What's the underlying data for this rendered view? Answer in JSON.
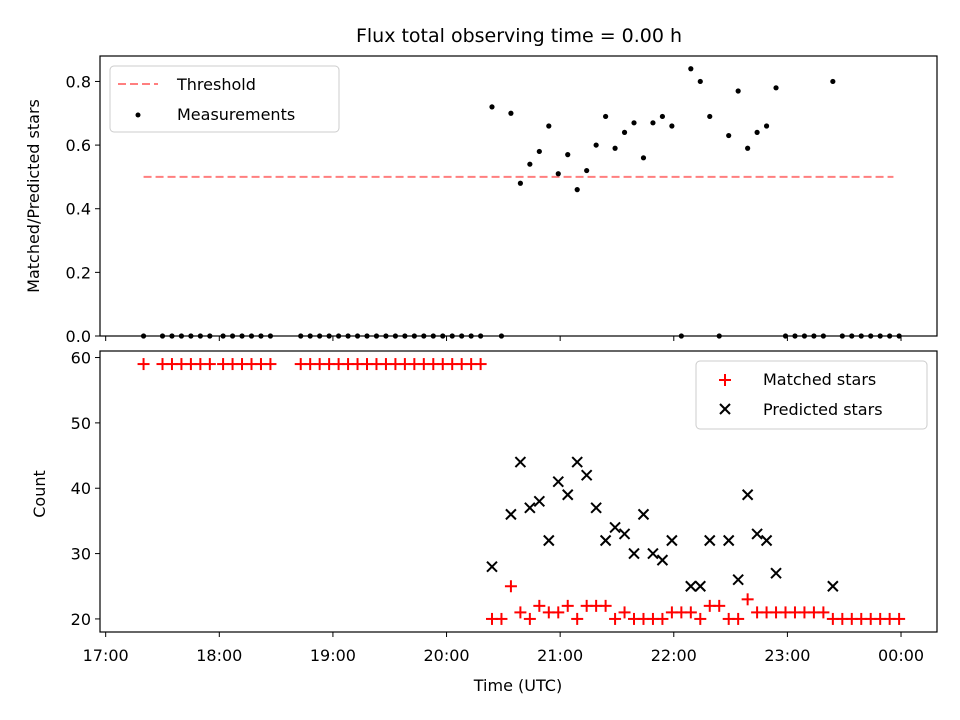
{
  "chart_data": [
    {
      "type": "scatter",
      "title": "Flux total observing time = 0.00 h",
      "xlabel": "",
      "ylabel": "Matched/Predicted stars",
      "ylim": [
        0,
        0.88
      ],
      "xlim": [
        "16:57",
        "00:19"
      ],
      "x_ticks": [
        "17:00",
        "18:00",
        "19:00",
        "20:00",
        "21:00",
        "22:00",
        "23:00",
        "00:00"
      ],
      "x_tick_labels_visible": false,
      "y_ticks": [
        "0.0",
        "0.2",
        "0.4",
        "0.6",
        "0.8"
      ],
      "legend": {
        "placement": "top-left",
        "entries": [
          "Threshold",
          "Measurements"
        ]
      },
      "grid": false,
      "threshold": {
        "name": "Threshold",
        "value": 0.5,
        "x_range": [
          "17:20",
          "23:56"
        ],
        "style": "dashed",
        "color": "#ff7f7f"
      },
      "series": [
        {
          "name": "Measurements",
          "color": "#000000",
          "marker": "dot",
          "points": [
            [
              "17:20",
              0
            ],
            [
              "17:30",
              0
            ],
            [
              "17:35",
              0
            ],
            [
              "17:40",
              0
            ],
            [
              "17:45",
              0
            ],
            [
              "17:50",
              0
            ],
            [
              "17:55",
              0
            ],
            [
              "18:02",
              0
            ],
            [
              "18:07",
              0
            ],
            [
              "18:12",
              0
            ],
            [
              "18:17",
              0
            ],
            [
              "18:22",
              0
            ],
            [
              "18:27",
              0
            ],
            [
              "18:43",
              0
            ],
            [
              "18:48",
              0
            ],
            [
              "18:53",
              0
            ],
            [
              "18:58",
              0
            ],
            [
              "19:03",
              0
            ],
            [
              "19:08",
              0
            ],
            [
              "19:13",
              0
            ],
            [
              "19:18",
              0
            ],
            [
              "19:23",
              0
            ],
            [
              "19:28",
              0
            ],
            [
              "19:33",
              0
            ],
            [
              "19:38",
              0
            ],
            [
              "19:43",
              0
            ],
            [
              "19:48",
              0
            ],
            [
              "19:53",
              0
            ],
            [
              "19:58",
              0
            ],
            [
              "20:03",
              0
            ],
            [
              "20:08",
              0
            ],
            [
              "20:13",
              0
            ],
            [
              "20:18",
              0
            ],
            [
              "20:24",
              0.72
            ],
            [
              "20:29",
              0
            ],
            [
              "20:34",
              0.7
            ],
            [
              "20:39",
              0.48
            ],
            [
              "20:44",
              0.54
            ],
            [
              "20:49",
              0.58
            ],
            [
              "20:54",
              0.66
            ],
            [
              "20:59",
              0.51
            ],
            [
              "21:04",
              0.57
            ],
            [
              "21:09",
              0.46
            ],
            [
              "21:14",
              0.52
            ],
            [
              "21:19",
              0.6
            ],
            [
              "21:24",
              0.69
            ],
            [
              "21:29",
              0.59
            ],
            [
              "21:34",
              0.64
            ],
            [
              "21:39",
              0.67
            ],
            [
              "21:44",
              0.56
            ],
            [
              "21:49",
              0.67
            ],
            [
              "21:54",
              0.69
            ],
            [
              "21:59",
              0.66
            ],
            [
              "22:04",
              0
            ],
            [
              "22:09",
              0.84
            ],
            [
              "22:14",
              0.8
            ],
            [
              "22:19",
              0.69
            ],
            [
              "22:24",
              0
            ],
            [
              "22:29",
              0.63
            ],
            [
              "22:34",
              0.77
            ],
            [
              "22:39",
              0.59
            ],
            [
              "22:44",
              0.64
            ],
            [
              "22:49",
              0.66
            ],
            [
              "22:54",
              0.78
            ],
            [
              "22:59",
              0
            ],
            [
              "23:04",
              0
            ],
            [
              "23:09",
              0
            ],
            [
              "23:14",
              0
            ],
            [
              "23:19",
              0
            ],
            [
              "23:24",
              0.8
            ],
            [
              "23:29",
              0
            ],
            [
              "23:34",
              0
            ],
            [
              "23:39",
              0
            ],
            [
              "23:44",
              0
            ],
            [
              "23:49",
              0
            ],
            [
              "23:54",
              0
            ],
            [
              "23:59",
              0
            ]
          ]
        }
      ]
    },
    {
      "type": "scatter",
      "title": "",
      "xlabel": "Time (UTC)",
      "ylabel": "Count",
      "ylim": [
        18,
        61
      ],
      "xlim": [
        "16:57",
        "00:19"
      ],
      "x_ticks": [
        "17:00",
        "18:00",
        "19:00",
        "20:00",
        "21:00",
        "22:00",
        "23:00",
        "00:00"
      ],
      "y_ticks": [
        "20",
        "30",
        "40",
        "50",
        "60"
      ],
      "legend": {
        "placement": "top-right",
        "entries": [
          "Matched stars",
          "Predicted stars"
        ]
      },
      "grid": false,
      "series": [
        {
          "name": "Matched stars",
          "color": "#ff0000",
          "marker": "plus",
          "points": [
            [
              "17:20",
              59
            ],
            [
              "17:30",
              59
            ],
            [
              "17:35",
              59
            ],
            [
              "17:40",
              59
            ],
            [
              "17:45",
              59
            ],
            [
              "17:50",
              59
            ],
            [
              "17:55",
              59
            ],
            [
              "18:02",
              59
            ],
            [
              "18:07",
              59
            ],
            [
              "18:12",
              59
            ],
            [
              "18:17",
              59
            ],
            [
              "18:22",
              59
            ],
            [
              "18:27",
              59
            ],
            [
              "18:43",
              59
            ],
            [
              "18:48",
              59
            ],
            [
              "18:53",
              59
            ],
            [
              "18:58",
              59
            ],
            [
              "19:03",
              59
            ],
            [
              "19:08",
              59
            ],
            [
              "19:13",
              59
            ],
            [
              "19:18",
              59
            ],
            [
              "19:23",
              59
            ],
            [
              "19:28",
              59
            ],
            [
              "19:33",
              59
            ],
            [
              "19:38",
              59
            ],
            [
              "19:43",
              59
            ],
            [
              "19:48",
              59
            ],
            [
              "19:53",
              59
            ],
            [
              "19:58",
              59
            ],
            [
              "20:03",
              59
            ],
            [
              "20:08",
              59
            ],
            [
              "20:13",
              59
            ],
            [
              "20:18",
              59
            ],
            [
              "20:24",
              20
            ],
            [
              "20:29",
              20
            ],
            [
              "20:34",
              25
            ],
            [
              "20:39",
              21
            ],
            [
              "20:44",
              20
            ],
            [
              "20:49",
              22
            ],
            [
              "20:54",
              21
            ],
            [
              "20:59",
              21
            ],
            [
              "21:04",
              22
            ],
            [
              "21:09",
              20
            ],
            [
              "21:14",
              22
            ],
            [
              "21:19",
              22
            ],
            [
              "21:24",
              22
            ],
            [
              "21:29",
              20
            ],
            [
              "21:34",
              21
            ],
            [
              "21:39",
              20
            ],
            [
              "21:44",
              20
            ],
            [
              "21:49",
              20
            ],
            [
              "21:54",
              20
            ],
            [
              "21:59",
              21
            ],
            [
              "22:04",
              21
            ],
            [
              "22:09",
              21
            ],
            [
              "22:14",
              20
            ],
            [
              "22:19",
              22
            ],
            [
              "22:24",
              22
            ],
            [
              "22:29",
              20
            ],
            [
              "22:34",
              20
            ],
            [
              "22:39",
              23
            ],
            [
              "22:44",
              21
            ],
            [
              "22:49",
              21
            ],
            [
              "22:54",
              21
            ],
            [
              "22:59",
              21
            ],
            [
              "23:04",
              21
            ],
            [
              "23:09",
              21
            ],
            [
              "23:14",
              21
            ],
            [
              "23:19",
              21
            ],
            [
              "23:24",
              20
            ],
            [
              "23:29",
              20
            ],
            [
              "23:34",
              20
            ],
            [
              "23:39",
              20
            ],
            [
              "23:44",
              20
            ],
            [
              "23:49",
              20
            ],
            [
              "23:54",
              20
            ],
            [
              "23:59",
              20
            ]
          ]
        },
        {
          "name": "Predicted stars",
          "color": "#000000",
          "marker": "x",
          "points": [
            [
              "20:24",
              28
            ],
            [
              "20:34",
              36
            ],
            [
              "20:39",
              44
            ],
            [
              "20:44",
              37
            ],
            [
              "20:49",
              38
            ],
            [
              "20:54",
              32
            ],
            [
              "20:59",
              41
            ],
            [
              "21:04",
              39
            ],
            [
              "21:09",
              44
            ],
            [
              "21:14",
              42
            ],
            [
              "21:19",
              37
            ],
            [
              "21:24",
              32
            ],
            [
              "21:29",
              34
            ],
            [
              "21:34",
              33
            ],
            [
              "21:39",
              30
            ],
            [
              "21:44",
              36
            ],
            [
              "21:49",
              30
            ],
            [
              "21:54",
              29
            ],
            [
              "21:59",
              32
            ],
            [
              "22:09",
              25
            ],
            [
              "22:14",
              25
            ],
            [
              "22:19",
              32
            ],
            [
              "22:29",
              32
            ],
            [
              "22:34",
              26
            ],
            [
              "22:39",
              39
            ],
            [
              "22:44",
              33
            ],
            [
              "22:49",
              32
            ],
            [
              "22:54",
              27
            ],
            [
              "23:24",
              25
            ]
          ]
        }
      ]
    }
  ]
}
